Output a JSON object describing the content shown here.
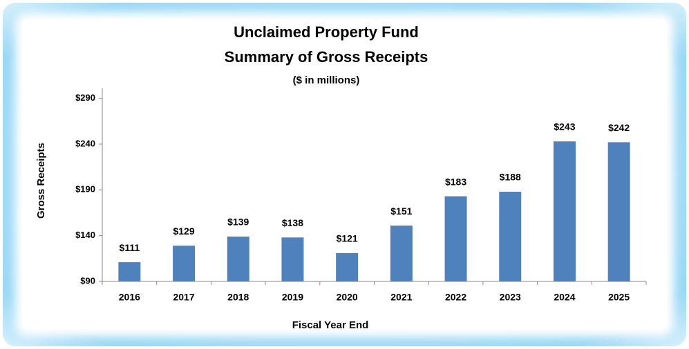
{
  "chart_data": {
    "type": "bar",
    "title": "Unclaimed Property Fund",
    "subtitle": "Summary of Gross Receipts",
    "note": "($ in millions)",
    "x_label": "Fiscal Year End",
    "y_label": "Gross Receipts",
    "categories": [
      "2016",
      "2017",
      "2018",
      "2019",
      "2020",
      "2021",
      "2022",
      "2023",
      "2024",
      "2025"
    ],
    "values": [
      111,
      129,
      139,
      138,
      121,
      151,
      183,
      188,
      243,
      242
    ],
    "value_labels": [
      "$111",
      "$129",
      "$139",
      "$138",
      "$121",
      "$151",
      "$183",
      "$188",
      "$243",
      "$242"
    ],
    "color": "#4f81bd",
    "ylim": [
      90,
      301
    ],
    "yticks": [
      {
        "value": 90,
        "label": "$90"
      },
      {
        "value": 140,
        "label": "$140"
      },
      {
        "value": 190,
        "label": "$190"
      },
      {
        "value": 240,
        "label": "$240"
      },
      {
        "value": 290,
        "label": "$290"
      }
    ]
  }
}
